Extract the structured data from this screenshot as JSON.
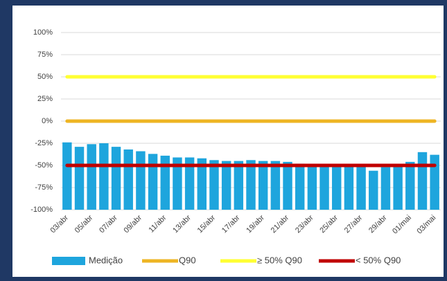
{
  "chart_data": {
    "type": "combo",
    "categories": [
      "03/abr",
      null,
      "05/abr",
      null,
      "07/abr",
      null,
      "09/abr",
      null,
      "11/abr",
      null,
      "13/abr",
      null,
      "15/abr",
      null,
      "17/abr",
      null,
      "19/abr",
      null,
      "21/abr",
      null,
      "23/abr",
      null,
      "25/abr",
      null,
      "27/abr",
      null,
      "29/abr",
      null,
      "01/mai",
      null,
      "03/mai"
    ],
    "series": [
      {
        "name": "Medição",
        "type": "bar",
        "color": "#1ea5dd",
        "values": [
          -24,
          -29,
          -26,
          -25,
          -29,
          -32,
          -34,
          -37,
          -39,
          -41,
          -41,
          -42,
          -44,
          -45,
          -45,
          -44,
          -45,
          -45,
          -46,
          -48,
          -49,
          -50,
          -51,
          -51,
          -49,
          -56,
          -52,
          -51,
          -46,
          -35,
          -38
        ]
      },
      {
        "name": "Q90",
        "type": "line",
        "color": "#eeb524",
        "values": [
          0,
          0,
          0,
          0,
          0,
          0,
          0,
          0,
          0,
          0,
          0,
          0,
          0,
          0,
          0,
          0,
          0,
          0,
          0,
          0,
          0,
          0,
          0,
          0,
          0,
          0,
          0,
          0,
          0,
          0,
          0
        ]
      },
      {
        "name": "≥ 50% Q90",
        "type": "line",
        "color": "#ffff33",
        "values": [
          50,
          50,
          50,
          50,
          50,
          50,
          50,
          50,
          50,
          50,
          50,
          50,
          50,
          50,
          50,
          50,
          50,
          50,
          50,
          50,
          50,
          50,
          50,
          50,
          50,
          50,
          50,
          50,
          50,
          50,
          50
        ]
      },
      {
        "name": "< 50% Q90",
        "type": "line",
        "color": "#c00000",
        "values": [
          -50,
          -50,
          -50,
          -50,
          -50,
          -50,
          -50,
          -50,
          -50,
          -50,
          -50,
          -50,
          -50,
          -50,
          -50,
          -50,
          -50,
          -50,
          -50,
          -50,
          -50,
          -50,
          -50,
          -50,
          -50,
          -50,
          -50,
          -50,
          -50,
          -50,
          -50
        ]
      }
    ],
    "ylim": [
      -100,
      100
    ],
    "yticks": [
      {
        "value": -100,
        "label": "-100%"
      },
      {
        "value": -75,
        "label": "-75%"
      },
      {
        "value": -50,
        "label": "-50%"
      },
      {
        "value": -25,
        "label": "-25%"
      },
      {
        "value": 0,
        "label": "0%"
      },
      {
        "value": 25,
        "label": "25%"
      },
      {
        "value": 50,
        "label": "50%"
      },
      {
        "value": 75,
        "label": "75%"
      },
      {
        "value": 100,
        "label": "100%"
      }
    ],
    "grid": true,
    "legend": "bottom"
  }
}
